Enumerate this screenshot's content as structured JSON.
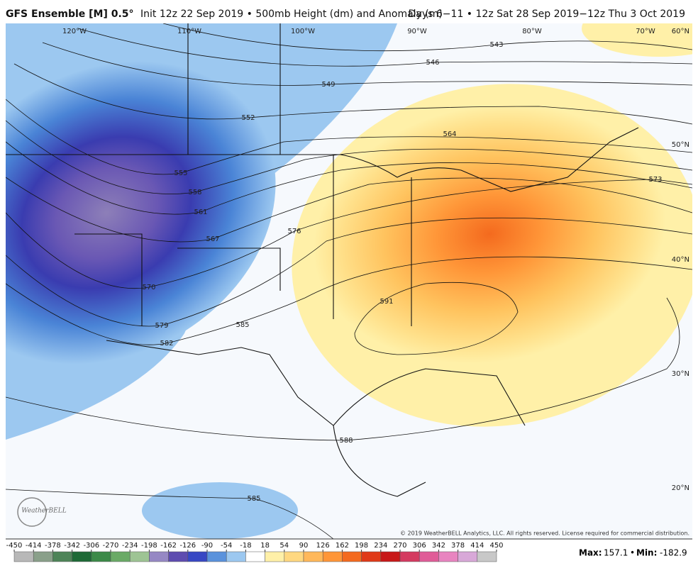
{
  "header": {
    "title": "GFS Ensemble [M] 0.5°",
    "subtitle": "Init 12z 22 Sep 2019 • 500mb Height (dm) and Anomaly (m)",
    "valid": "Days 6−11 • 12z Sat 28 Sep 2019−12z Thu 3 Oct 2019"
  },
  "longitudes": [
    "120°W",
    "110°W",
    "100°W",
    "90°W",
    "80°W",
    "70°W"
  ],
  "latitudes": [
    "60°N",
    "50°N",
    "40°N",
    "30°N",
    "20°N"
  ],
  "contours": [
    543,
    546,
    549,
    552,
    555,
    558,
    561,
    567,
    570,
    576,
    579,
    582,
    585,
    591,
    564,
    573,
    588,
    585
  ],
  "logo": "WeatherBELL",
  "copyright": "© 2019 WeatherBELL Analytics, LLC. All rights reserved. License required for commercial distribution.",
  "colorbar": {
    "ticks": [
      -450,
      -414,
      -378,
      -342,
      -306,
      -270,
      -234,
      -198,
      -162,
      -126,
      -90,
      -54,
      -18,
      18,
      54,
      90,
      126,
      162,
      198,
      234,
      270,
      306,
      342,
      378,
      414,
      450
    ],
    "colors": [
      "#b8b8b8",
      "#8aa08a",
      "#4e8458",
      "#1e6a36",
      "#3c8a48",
      "#6aaa66",
      "#9ec494",
      "#9688c4",
      "#5e4cb0",
      "#3848c4",
      "#5a92dc",
      "#9cc8f0",
      "#ffffff",
      "#fff0a8",
      "#ffd880",
      "#ffb85a",
      "#ff9638",
      "#f46a1e",
      "#e03a18",
      "#c81818",
      "#d43a60",
      "#e05c98",
      "#e884c0",
      "#d8a8d8",
      "#c8c8c8"
    ]
  },
  "stats": {
    "max_label": "Max:",
    "max": 157.1,
    "separator": "•",
    "min_label": "Min:",
    "min": -182.9
  }
}
